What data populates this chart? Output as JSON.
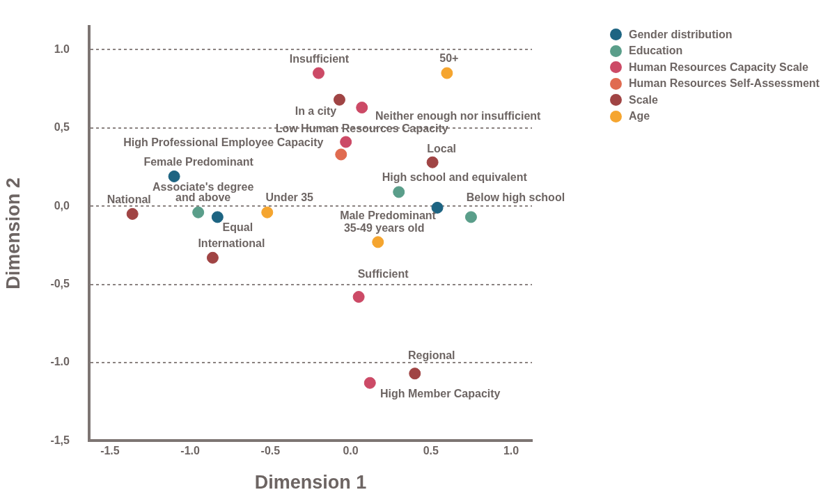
{
  "chart_data": {
    "type": "scatter",
    "xlabel": "Dimension 1",
    "ylabel": "Dimension 2",
    "xlim": [
      -1.63,
      1.13
    ],
    "ylim": [
      -1.5,
      1.15
    ],
    "xticks": [
      -1.5,
      {
        "value": -1.0,
        "label": "-1.0"
      },
      -0.5,
      {
        "value": 0,
        "label": "0.0"
      },
      0.5,
      {
        "value": 1.0,
        "label": "1.0"
      }
    ],
    "yticks": [
      {
        "value": -1.5,
        "label": "-1,5"
      },
      {
        "value": -1.0,
        "label": "-1.0"
      },
      {
        "value": -0.5,
        "label": "-0,5"
      },
      {
        "value": 0,
        "label": "0,0"
      },
      {
        "value": 0.5,
        "label": "0,5"
      },
      {
        "value": 1.0,
        "label": "1.0"
      }
    ],
    "grid": "y",
    "legend": "top right",
    "marker": "circle",
    "series": [
      {
        "name": "Gender distribution",
        "color": "#1d6482",
        "x": [
          -1.1,
          -0.83,
          0.54
        ],
        "values": [
          0.19,
          -0.07,
          -0.01
        ]
      },
      {
        "name": "Education",
        "color": "#5a9e8a",
        "x": [
          -0.95,
          0.3,
          0.75
        ],
        "values": [
          -0.04,
          0.09,
          -0.07
        ]
      },
      {
        "name": "Human Resources Capacity Scale",
        "color": "#cc4a66",
        "x": [
          -0.2,
          0.07,
          -0.03,
          0.05,
          0.12
        ],
        "values": [
          0.85,
          0.63,
          0.41,
          -0.58,
          -1.13
        ]
      },
      {
        "name": "Human Resources Self-Assessment",
        "color": "#e06b50",
        "x": [
          -0.06
        ],
        "values": [
          0.33
        ]
      },
      {
        "name": "Scale",
        "color": "#a04444",
        "x": [
          -0.07,
          0.51,
          -1.36,
          -0.86,
          0.4
        ],
        "values": [
          0.68,
          0.28,
          -0.05,
          -0.33,
          -1.07
        ]
      },
      {
        "name": "Age",
        "color": "#f5a52f",
        "x": [
          0.6,
          -0.52,
          0.17
        ],
        "values": [
          0.85,
          -0.04,
          -0.23
        ]
      }
    ],
    "annotations": [
      {
        "text": "Female Predominant",
        "x": -1.1,
        "y": 0.19
      },
      {
        "text": "Equal",
        "x": -0.83,
        "y": -0.07
      },
      {
        "text": "Male Predominant",
        "x": 0.54,
        "y": -0.01
      },
      {
        "text": "Associate's degree and above",
        "x": -0.95,
        "y": -0.04
      },
      {
        "text": "High school and equivalent",
        "x": 0.3,
        "y": 0.09
      },
      {
        "text": "Below high school",
        "x": 0.75,
        "y": -0.07
      },
      {
        "text": "Insufficient",
        "x": -0.2,
        "y": 0.85
      },
      {
        "text": "Neither enough nor insufficient",
        "x": 0.07,
        "y": 0.63
      },
      {
        "text": "Low Human Resources Capacity",
        "x": -0.03,
        "y": 0.41
      },
      {
        "text": "Sufficient",
        "x": 0.05,
        "y": -0.58
      },
      {
        "text": "High Member Capacity",
        "x": 0.12,
        "y": -1.13
      },
      {
        "text": "High Professional Employee Capacity",
        "x": -0.06,
        "y": 0.33
      },
      {
        "text": "In a city",
        "x": -0.07,
        "y": 0.68
      },
      {
        "text": "Local",
        "x": 0.51,
        "y": 0.28
      },
      {
        "text": "National",
        "x": -1.36,
        "y": -0.05
      },
      {
        "text": "International",
        "x": -0.86,
        "y": -0.33
      },
      {
        "text": "Regional",
        "x": 0.4,
        "y": -1.07
      },
      {
        "text": "50+",
        "x": 0.6,
        "y": 0.85
      },
      {
        "text": "Under 35",
        "x": -0.52,
        "y": -0.04
      },
      {
        "text": "35-49 years old",
        "x": 0.17,
        "y": -0.23
      }
    ]
  }
}
